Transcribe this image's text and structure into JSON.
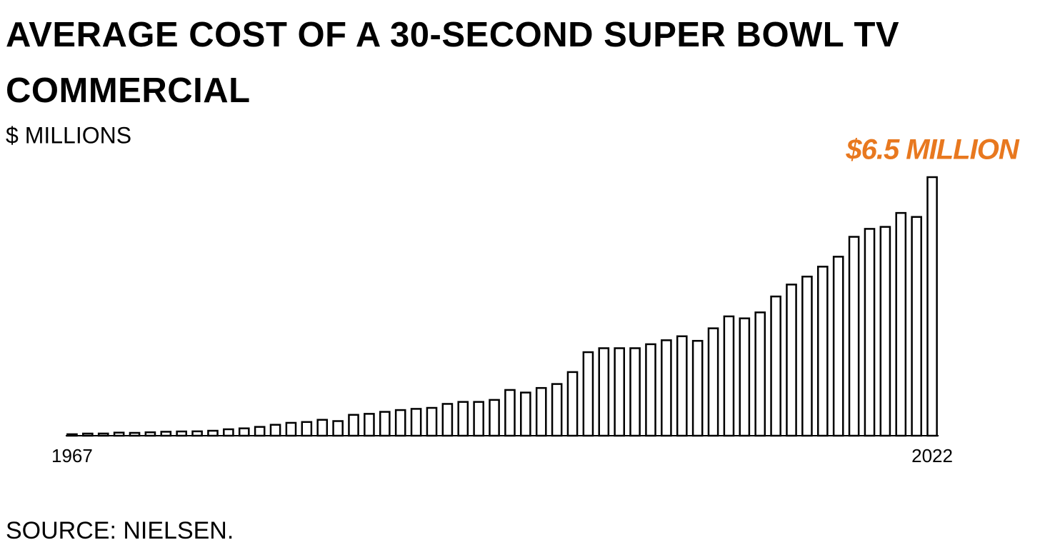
{
  "chart_data": {
    "type": "bar",
    "title": "AVERAGE COST OF A 30-SECOND SUPER BOWL TV COMMERCIAL",
    "subtitle": "$ MILLIONS",
    "annotation": "$6.5 MILLION",
    "source": "SOURCE: NIELSEN.",
    "categories": [
      "1967",
      null,
      null,
      null,
      null,
      null,
      null,
      null,
      null,
      null,
      null,
      null,
      null,
      null,
      null,
      null,
      null,
      null,
      null,
      null,
      null,
      null,
      null,
      null,
      null,
      null,
      null,
      null,
      null,
      null,
      null,
      null,
      null,
      null,
      null,
      null,
      null,
      null,
      null,
      null,
      null,
      null,
      null,
      null,
      null,
      null,
      null,
      null,
      null,
      null,
      null,
      null,
      null,
      null,
      null,
      "2022"
    ],
    "values": [
      0.0375,
      0.054,
      0.055,
      0.078,
      0.072,
      0.086,
      0.1,
      0.107,
      0.11,
      0.125,
      0.162,
      0.185,
      0.222,
      0.275,
      0.324,
      0.345,
      0.4,
      0.368,
      0.525,
      0.55,
      0.6,
      0.645,
      0.675,
      0.7,
      0.8,
      0.85,
      0.85,
      0.9,
      1.15,
      1.085,
      1.2,
      1.3,
      1.6,
      2.1,
      2.2,
      2.2,
      2.2,
      2.3,
      2.4,
      2.5,
      2.385,
      2.7,
      3.0,
      2.95,
      3.1,
      3.5,
      3.8,
      4.0,
      4.25,
      4.5,
      5.0,
      5.2,
      5.25,
      5.6,
      5.5,
      6.5
    ],
    "color": "#ffffff",
    "annotation_color": "#e8781f",
    "ylim": [
      0,
      6.5
    ]
  }
}
